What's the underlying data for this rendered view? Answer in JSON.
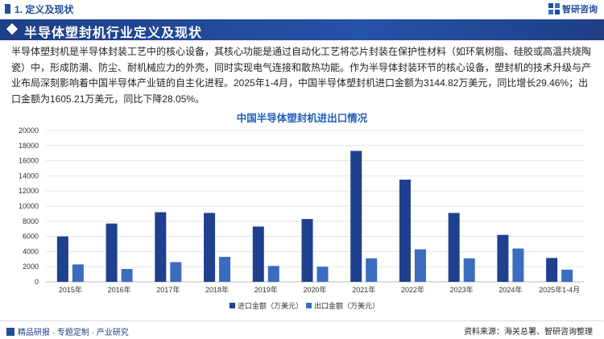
{
  "header": {
    "section_title": "1. 定义及现状",
    "logo_text": "智研咨询",
    "logo_icon": "zhiyan-logo-icon"
  },
  "banner": {
    "title": "半导体塑封机行业定义及现状"
  },
  "paragraph": "半导体塑封机是半导体封装工艺中的核心设备，其核心功能是通过自动化工艺将芯片封装在保护性材料（如环氧树脂、硅胶或高温共烧陶瓷）中，形成防潮、防尘、耐机械应力的外壳，同时实现电气连接和散热功能。作为半导体封装环节的核心设备，塑封机的技术升级与产业布局深刻影响着中国半导体产业链的自主化进程。2025年1-4月，中国半导体塑封机进口金额为3144.82万美元，同比增长29.46%；出口金额为1605.21万美元，同比下降28.05%。",
  "chart_data": {
    "type": "bar",
    "title": "中国半导体塑封机进出口情况",
    "categories": [
      "2015年",
      "2016年",
      "2017年",
      "2018年",
      "2019年",
      "2020年",
      "2021年",
      "2022年",
      "2023年",
      "2024年",
      "2025年1-4月"
    ],
    "series": [
      {
        "name": "进口金额（万美元）",
        "color": "#1f3f8f",
        "values": [
          6000,
          7700,
          9200,
          9100,
          7300,
          8300,
          17300,
          13500,
          9100,
          6200,
          3145
        ]
      },
      {
        "name": "出口金额（万美元）",
        "color": "#3a6cc0",
        "values": [
          2300,
          1700,
          2600,
          3300,
          2100,
          2000,
          3100,
          4300,
          3100,
          4400,
          1605
        ]
      }
    ],
    "ylim": [
      0,
      20000
    ],
    "yticks": [
      "0",
      "2000",
      "4000",
      "6000",
      "8000",
      "10000",
      "12000",
      "14000",
      "16000",
      "18000",
      "20000"
    ],
    "grid": true,
    "legend_position": "bottom-left"
  },
  "footer": {
    "left_text": "精品研报 · 专题定制 · 产业研究",
    "source": "资料来源：海关总署、智研咨询整理"
  }
}
